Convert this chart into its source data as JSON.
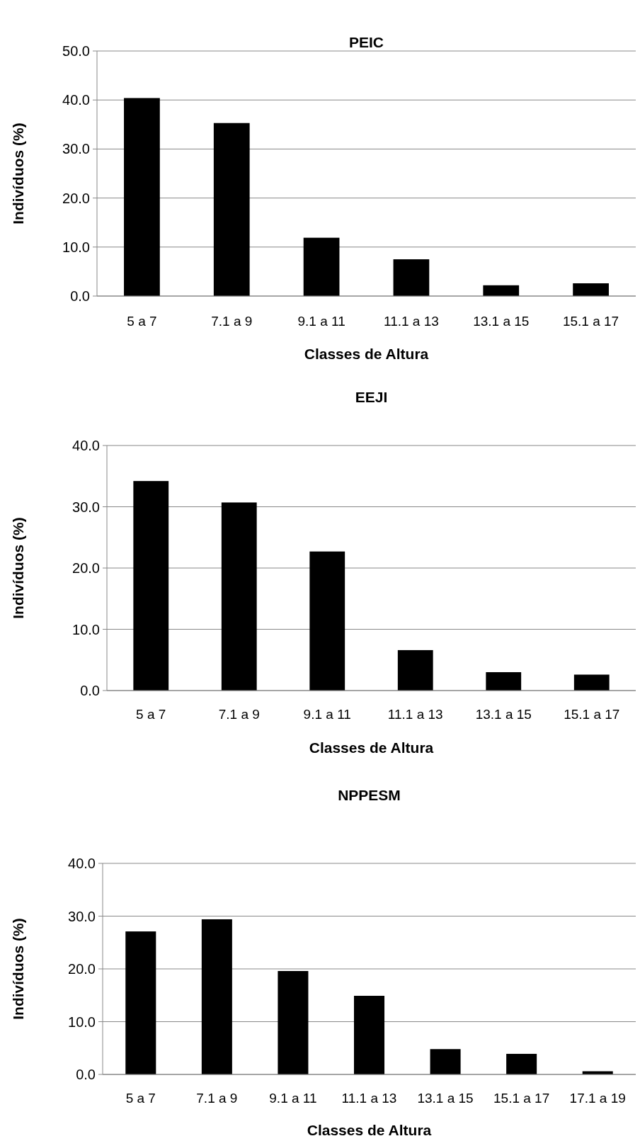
{
  "chart_data": [
    {
      "type": "bar",
      "title": "PEIC",
      "xlabel": "Classes de Altura",
      "ylabel": "Indivíduos (%)",
      "categories": [
        "5 a 7",
        "7.1 a 9",
        "9.1 a 11",
        "11.1 a 13",
        "13.1 a 15",
        "15.1 a 17"
      ],
      "values": [
        40.4,
        35.3,
        11.9,
        7.5,
        2.2,
        2.6
      ],
      "color": "#000000",
      "ylim": [
        0,
        50
      ],
      "yticks": [
        {
          "value": 0,
          "label": "0.0"
        },
        {
          "value": 10,
          "label": "10.0"
        },
        {
          "value": 20,
          "label": "20.0"
        },
        {
          "value": 30,
          "label": "30.0"
        },
        {
          "value": 40,
          "label": "40.0"
        },
        {
          "value": 50,
          "label": "50.0"
        }
      ],
      "grid": "y"
    },
    {
      "type": "bar",
      "title": "EEJI",
      "xlabel": "Classes de Altura",
      "ylabel": "Indivíduos (%)",
      "categories": [
        "5 a 7",
        "7.1 a 9",
        "9.1 a 11",
        "11.1 a 13",
        "13.1 a 15",
        "15.1 a 17"
      ],
      "values": [
        34.2,
        30.7,
        22.7,
        6.6,
        3.0,
        2.6
      ],
      "color": "#000000",
      "ylim": [
        0,
        40
      ],
      "yticks": [
        {
          "value": 0,
          "label": "0.0"
        },
        {
          "value": 10,
          "label": "10.0"
        },
        {
          "value": 20,
          "label": "20.0"
        },
        {
          "value": 30,
          "label": "30.0"
        },
        {
          "value": 40,
          "label": "40.0"
        }
      ],
      "grid": "y"
    },
    {
      "type": "bar",
      "title": "NPPESM",
      "xlabel": "Classes de Altura",
      "ylabel": "Indivíduos (%)",
      "categories": [
        "5 a 7",
        "7.1 a 9",
        "9.1 a 11",
        "11.1 a 13",
        "13.1 a 15",
        "15.1 a 17",
        "17.1 a 19"
      ],
      "values": [
        27.1,
        29.4,
        19.6,
        14.9,
        4.8,
        3.9,
        0.6
      ],
      "color": "#000000",
      "ylim": [
        0,
        40
      ],
      "yticks": [
        {
          "value": 0,
          "label": "0.0"
        },
        {
          "value": 10,
          "label": "10.0"
        },
        {
          "value": 20,
          "label": "20.0"
        },
        {
          "value": 30,
          "label": "30.0"
        },
        {
          "value": 40,
          "label": "40.0"
        }
      ],
      "grid": "y"
    }
  ]
}
